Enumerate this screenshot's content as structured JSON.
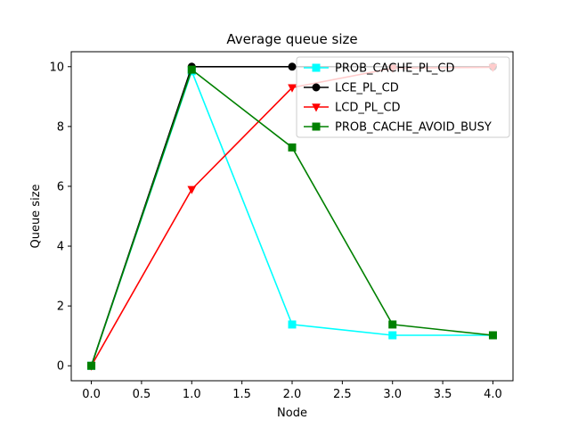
{
  "chart_data": {
    "type": "line",
    "title": "Average queue size",
    "xlabel": "Node",
    "ylabel": "Queue size",
    "xlim": [
      -0.2,
      4.2
    ],
    "ylim": [
      -0.5,
      10.5
    ],
    "xticks": [
      0.0,
      0.5,
      1.0,
      1.5,
      2.0,
      2.5,
      3.0,
      3.5,
      4.0
    ],
    "xtick_labels": [
      "0.0",
      "0.5",
      "1.0",
      "1.5",
      "2.0",
      "2.5",
      "3.0",
      "3.5",
      "4.0"
    ],
    "yticks": [
      0,
      2,
      4,
      6,
      8,
      10
    ],
    "ytick_labels": [
      "0",
      "2",
      "4",
      "6",
      "8",
      "10"
    ],
    "grid": false,
    "legend_position": "top-right",
    "x": [
      0,
      1,
      2,
      3,
      4
    ],
    "series": [
      {
        "name": "PROB_CACHE_PL_CD",
        "color": "#00ffff",
        "marker": "square",
        "values": [
          0,
          9.85,
          1.38,
          1.02,
          1.02
        ]
      },
      {
        "name": "LCE_PL_CD",
        "color": "#000000",
        "marker": "circle",
        "values": [
          0,
          10.0,
          10.0,
          10.0,
          10.0
        ]
      },
      {
        "name": "LCD_PL_CD",
        "color": "#ff0000",
        "marker": "triangle-down",
        "values": [
          0,
          5.9,
          9.3,
          9.95,
          9.98
        ]
      },
      {
        "name": "PROB_CACHE_AVOID_BUSY",
        "color": "#008000",
        "marker": "square",
        "values": [
          0,
          9.9,
          7.3,
          1.38,
          1.02
        ]
      }
    ]
  }
}
